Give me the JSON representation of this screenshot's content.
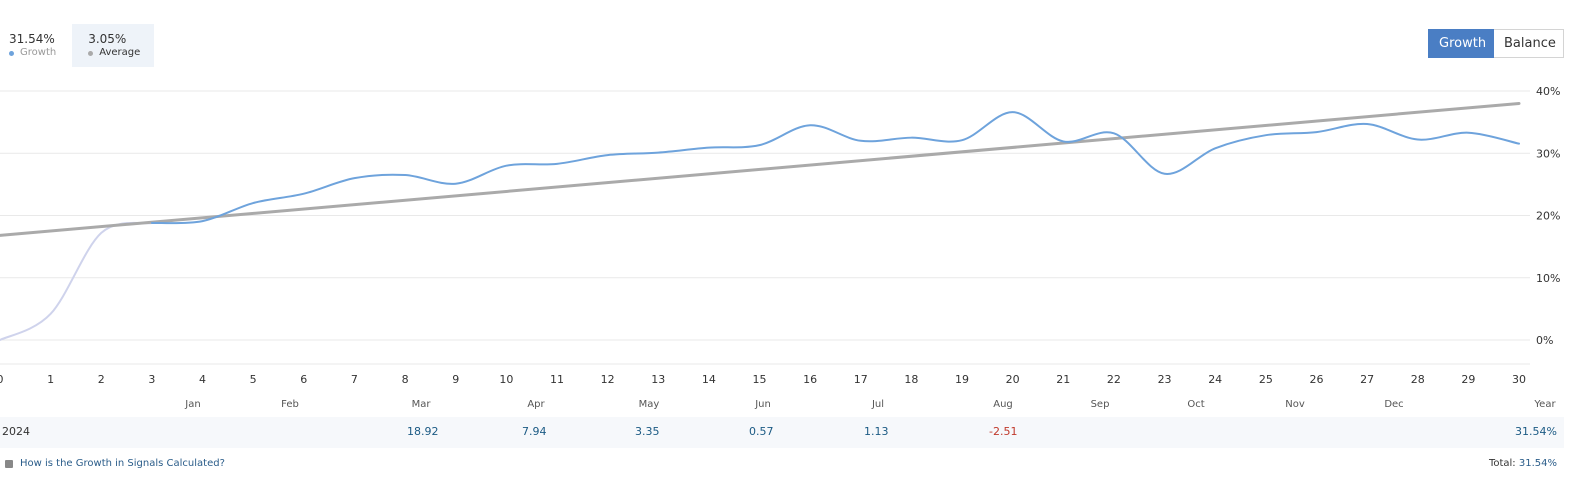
{
  "legend": {
    "growth": {
      "value": "31.54%",
      "label": "Growth",
      "color": "#6ea3dc"
    },
    "average": {
      "value": "3.05%",
      "label": "Average",
      "color": "#aaaaaa"
    }
  },
  "toggle": {
    "growth_label": "Growth",
    "balance_label": "Balance"
  },
  "chart_data": {
    "type": "line",
    "x_ticks": [
      0,
      1,
      2,
      3,
      4,
      5,
      6,
      7,
      8,
      9,
      10,
      11,
      12,
      13,
      14,
      15,
      16,
      17,
      18,
      19,
      20,
      21,
      22,
      23,
      24,
      25,
      26,
      27,
      28,
      29,
      30
    ],
    "y_ticks": [
      "0%",
      "10%",
      "20%",
      "30%",
      "40%"
    ],
    "ylim": [
      0,
      40
    ],
    "xlim": [
      0,
      30
    ],
    "month_labels": [
      "Jan",
      "Feb",
      "Mar",
      "Apr",
      "May",
      "Jun",
      "Jul",
      "Aug",
      "Sep",
      "Oct",
      "Nov",
      "Dec",
      "Year"
    ],
    "grid": true,
    "series": [
      {
        "name": "Growth",
        "color": "#6ea3dc",
        "x": [
          3,
          4,
          5,
          6,
          7,
          8,
          9,
          10,
          11,
          12,
          13,
          14,
          15,
          16,
          17,
          18,
          19,
          20,
          21,
          22,
          23,
          24,
          25,
          26,
          27,
          28,
          29,
          30
        ],
        "values": [
          18.8,
          19.1,
          22.0,
          23.5,
          26.0,
          26.5,
          25.1,
          28.0,
          28.3,
          29.7,
          30.1,
          30.9,
          31.3,
          34.5,
          32.0,
          32.5,
          32.1,
          36.6,
          31.9,
          33.2,
          26.7,
          30.8,
          32.9,
          33.4,
          34.7,
          32.2,
          33.3,
          31.54
        ]
      },
      {
        "name": "Growth (early)",
        "color": "#cfd3ec",
        "x": [
          0,
          1,
          2,
          3
        ],
        "values": [
          0,
          4.2,
          17.2,
          18.8
        ]
      },
      {
        "name": "Average",
        "color": "#aaaaaa",
        "x": [
          0,
          30
        ],
        "values": [
          16.8,
          38.0
        ]
      }
    ]
  },
  "year_row": {
    "label": "2024",
    "values": [
      {
        "month": "Mar",
        "value": "18.92",
        "sign": "pos"
      },
      {
        "month": "Apr",
        "value": "7.94",
        "sign": "pos"
      },
      {
        "month": "May",
        "value": "3.35",
        "sign": "pos"
      },
      {
        "month": "Jun",
        "value": "0.57",
        "sign": "pos"
      },
      {
        "month": "Jul",
        "value": "1.13",
        "sign": "pos"
      },
      {
        "month": "Aug",
        "value": "-2.51",
        "sign": "neg"
      }
    ],
    "year_total": "31.54%"
  },
  "footer": {
    "help_text": "How is the Growth in Signals Calculated?",
    "total_label": "Total:",
    "total_value": "31.54%"
  }
}
